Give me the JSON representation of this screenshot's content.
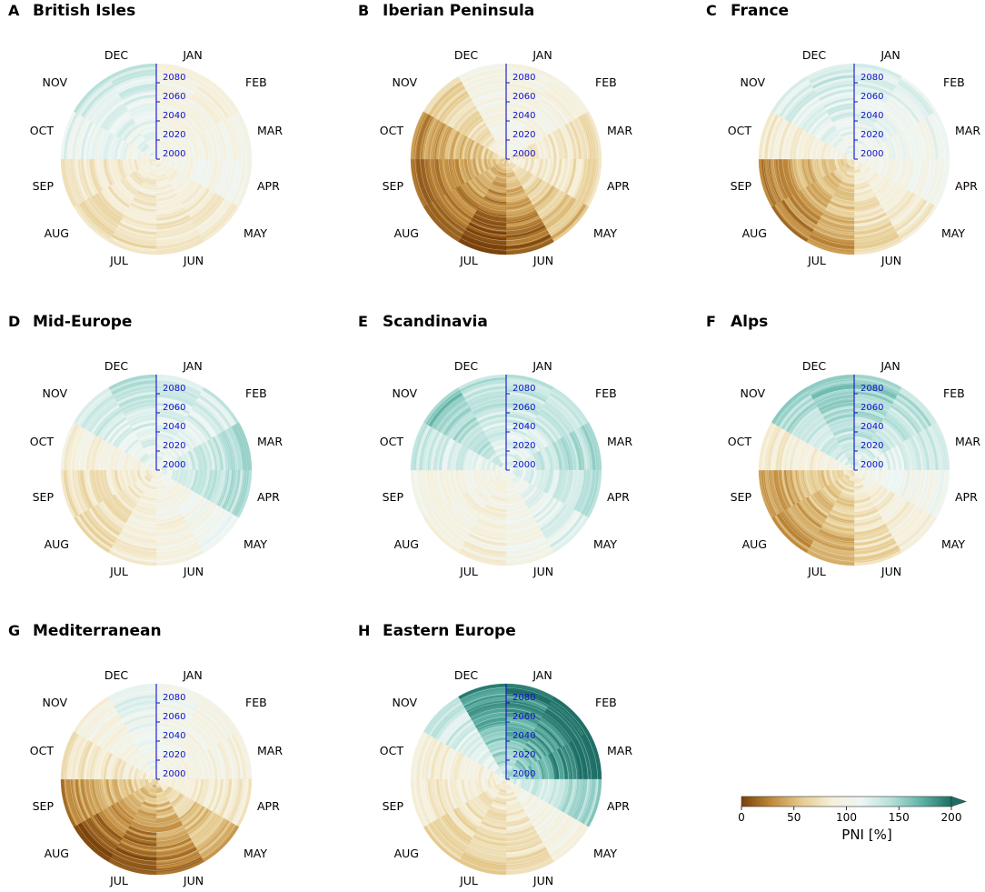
{
  "chart_data": {
    "type": "radial-heatmap",
    "description_units": "PNI [%] by month (angular) and year (radial)",
    "months": [
      "JAN",
      "FEB",
      "MAR",
      "APR",
      "MAY",
      "JUN",
      "JUL",
      "AUG",
      "SEP",
      "OCT",
      "NOV",
      "DEC"
    ],
    "year_ticks": [
      "2000",
      "2020",
      "2040",
      "2060",
      "2080"
    ],
    "year_range": [
      2000,
      2100
    ],
    "colormap": "BrBG",
    "colorbar": {
      "label": "PNI [%]",
      "ticks": [
        "0",
        "50",
        "100",
        "150",
        "200"
      ],
      "range": [
        0,
        200
      ],
      "extend": "max",
      "stops": [
        "#7a4108",
        "#c08a3b",
        "#e6cb8e",
        "#f6efd9",
        "#eef6f4",
        "#b5e0da",
        "#5fb3a6",
        "#1d6f66"
      ]
    },
    "panels": [
      {
        "letter": "A",
        "title": "British Isles",
        "pni": [
          96,
          96,
          97,
          102,
          89,
          85,
          80,
          79,
          81,
          112,
          122,
          121
        ]
      },
      {
        "letter": "B",
        "title": "Iberian Peninsula",
        "pni": [
          98,
          97,
          80,
          78,
          62,
          34,
          22,
          32,
          38,
          50,
          74,
          98
        ]
      },
      {
        "letter": "C",
        "title": "France",
        "pni": [
          120,
          112,
          108,
          102,
          88,
          76,
          52,
          44,
          48,
          90,
          118,
          124
        ]
      },
      {
        "letter": "D",
        "title": "Mid-Europe",
        "pni": [
          118,
          120,
          132,
          132,
          104,
          96,
          90,
          78,
          80,
          92,
          122,
          126
        ]
      },
      {
        "letter": "E",
        "title": "Scandinavia",
        "pni": [
          128,
          128,
          134,
          128,
          116,
          102,
          92,
          94,
          100,
          124,
          142,
          128
        ]
      },
      {
        "letter": "F",
        "title": "Alps",
        "pni": [
          140,
          130,
          122,
          108,
          88,
          76,
          56,
          50,
          52,
          88,
          134,
          142
        ]
      },
      {
        "letter": "G",
        "title": "Mediterranean",
        "pni": [
          104,
          98,
          94,
          86,
          58,
          40,
          30,
          34,
          50,
          80,
          96,
          114
        ]
      },
      {
        "letter": "H",
        "title": "Eastern Europe",
        "pni": [
          170,
          176,
          180,
          136,
          98,
          80,
          70,
          74,
          86,
          90,
          124,
          162
        ]
      }
    ]
  }
}
